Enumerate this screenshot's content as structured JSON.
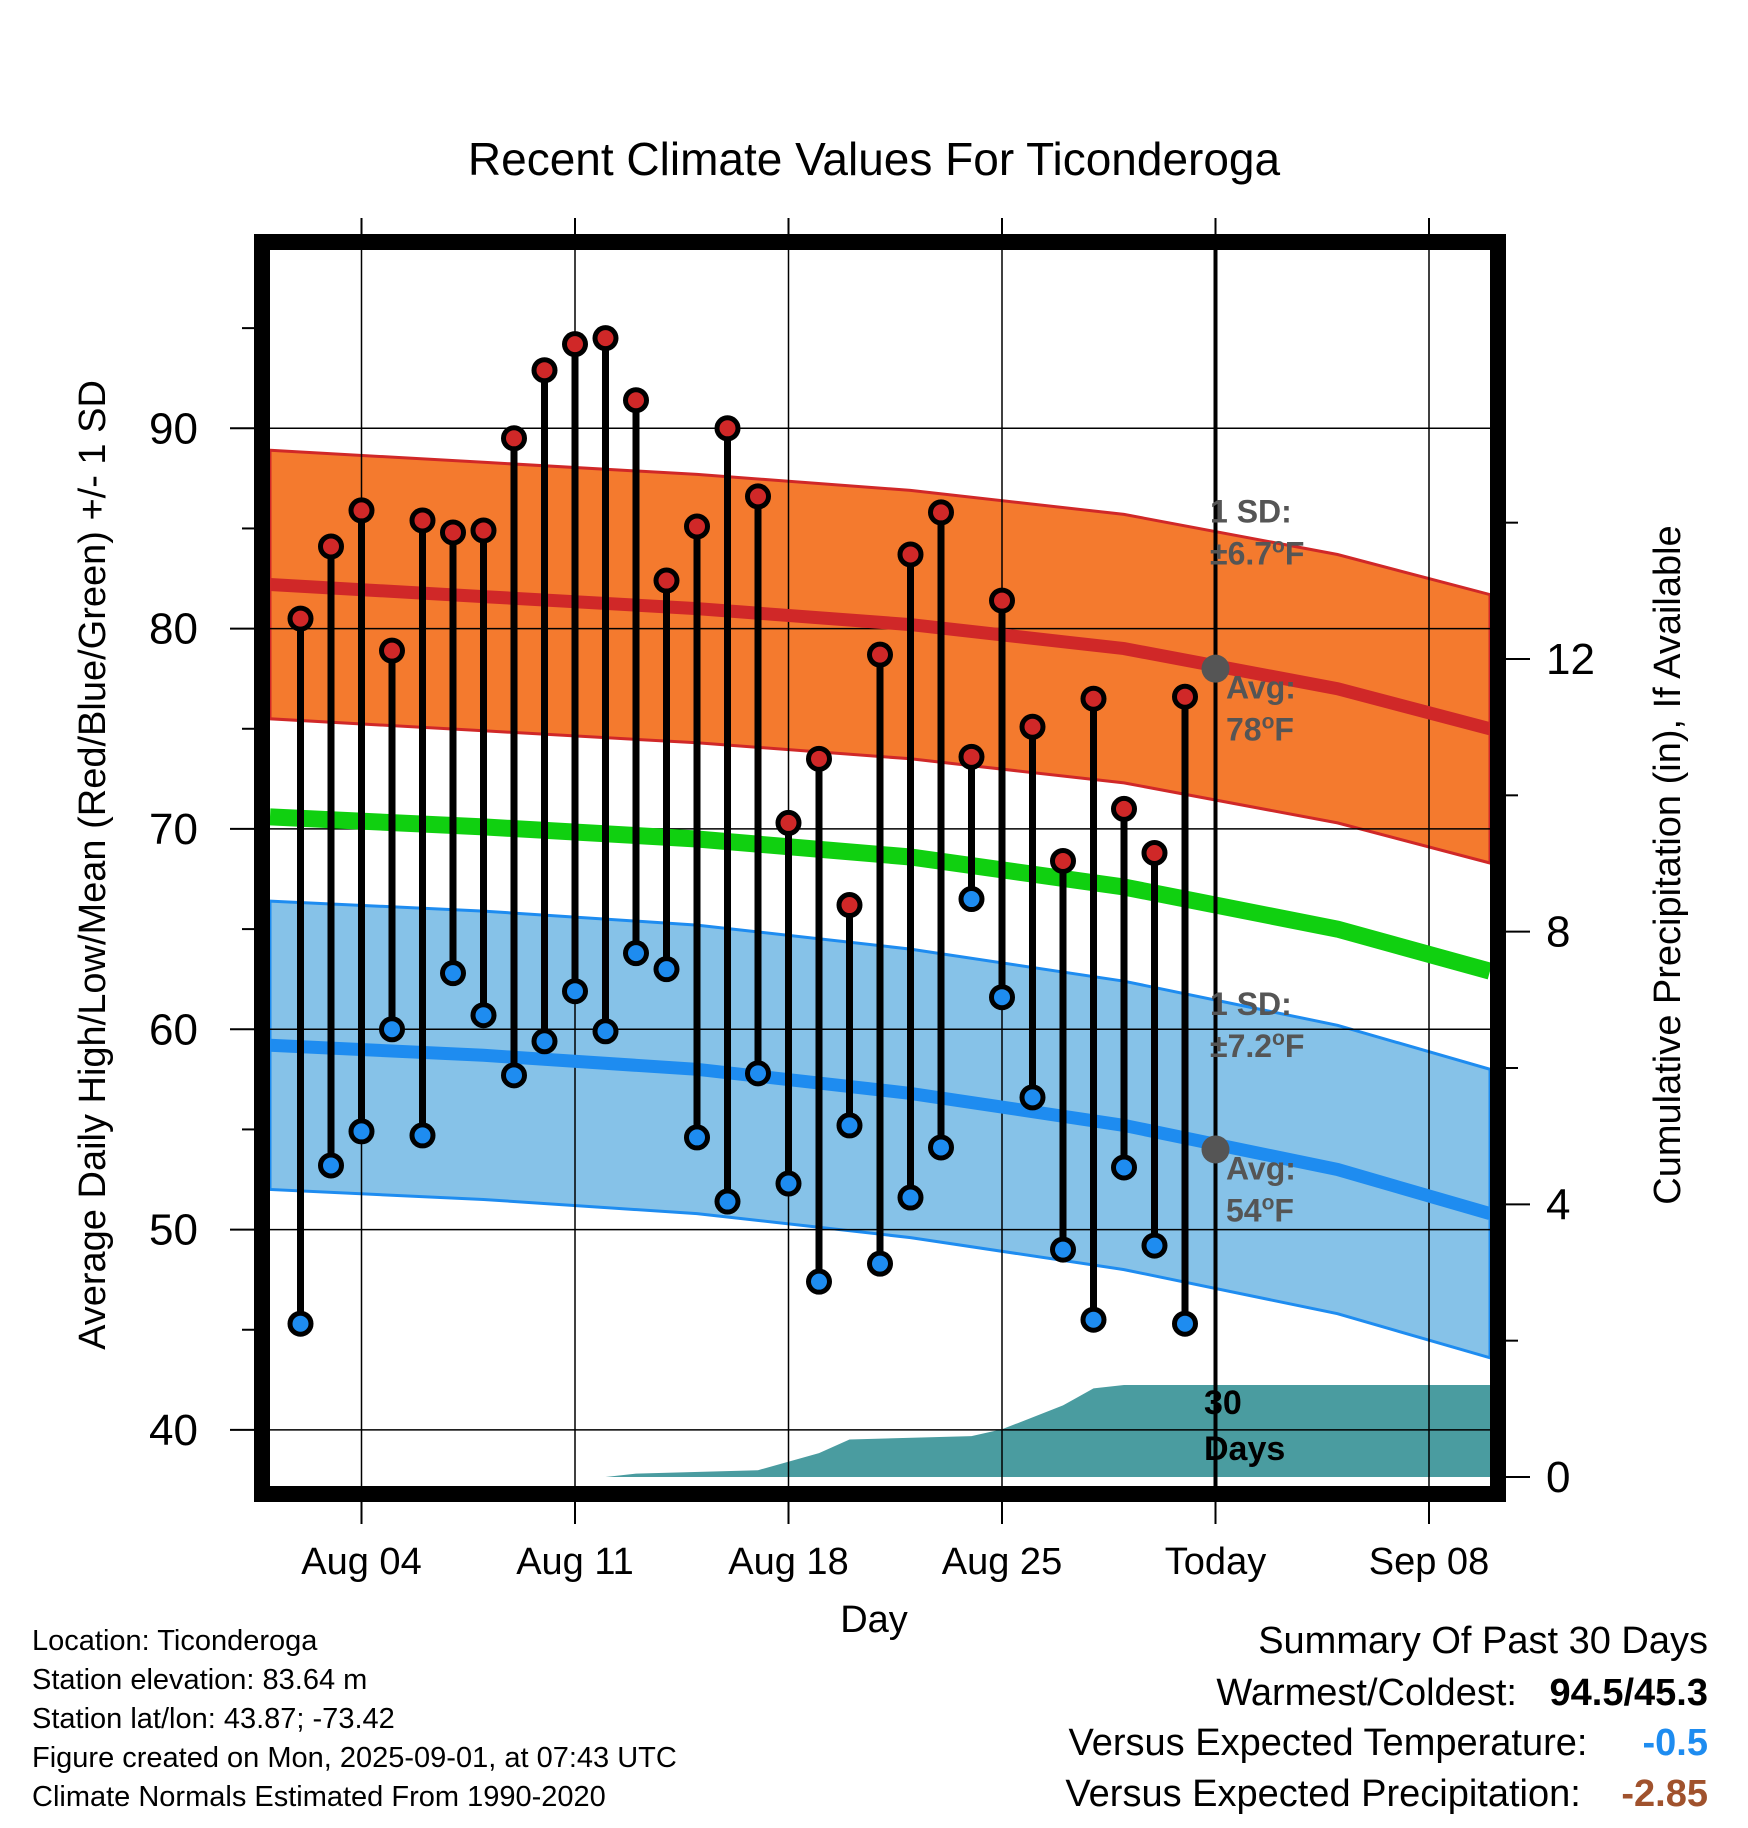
{
  "chart_data": {
    "type": "line",
    "title": "Recent Climate Values For Ticonderoga",
    "xlabel": "Day",
    "ylabel": "Average Daily High/Low/Mean (Red/Blue/Green) +/- 1 SD",
    "ylabel_right": "Cumulative Precipitation (in), If Available",
    "ylim": [
      37.2,
      98.9
    ],
    "ylim_right": [
      0,
      18
    ],
    "y_ticks": [
      "40",
      "50",
      "60",
      "70",
      "80",
      "90"
    ],
    "y_ticks_right": [
      "0",
      "4",
      "8",
      "12"
    ],
    "x_range": [
      "2025-08-01",
      "2025-09-10"
    ],
    "x_ticks": [
      {
        "date": "2025-08-04",
        "label": "Aug 04"
      },
      {
        "date": "2025-08-11",
        "label": "Aug 11"
      },
      {
        "date": "2025-08-18",
        "label": "Aug 18"
      },
      {
        "date": "2025-08-25",
        "label": "Aug 25"
      },
      {
        "date": "2025-09-01",
        "label": "Today"
      },
      {
        "date": "2025-09-08",
        "label": "Sep 08"
      }
    ],
    "grid": true,
    "days": [
      "2025-08-02",
      "2025-08-03",
      "2025-08-04",
      "2025-08-05",
      "2025-08-06",
      "2025-08-07",
      "2025-08-08",
      "2025-08-09",
      "2025-08-10",
      "2025-08-11",
      "2025-08-12",
      "2025-08-13",
      "2025-08-14",
      "2025-08-15",
      "2025-08-16",
      "2025-08-17",
      "2025-08-18",
      "2025-08-19",
      "2025-08-20",
      "2025-08-21",
      "2025-08-22",
      "2025-08-23",
      "2025-08-24",
      "2025-08-25",
      "2025-08-26",
      "2025-08-27",
      "2025-08-28",
      "2025-08-29",
      "2025-08-30",
      "2025-08-31"
    ],
    "daily_high": [
      80.5,
      84.1,
      85.9,
      78.9,
      85.4,
      84.8,
      84.9,
      89.5,
      92.9,
      94.2,
      94.5,
      91.4,
      82.4,
      85.1,
      90.0,
      86.6,
      70.3,
      73.5,
      66.2,
      78.7,
      83.7,
      85.8,
      73.6,
      81.4,
      75.1,
      68.4,
      76.5,
      71.0,
      68.8,
      76.6
    ],
    "daily_low": [
      45.3,
      53.2,
      54.9,
      60.0,
      54.7,
      62.8,
      60.7,
      57.7,
      59.4,
      61.9,
      59.9,
      63.8,
      63.0,
      54.6,
      51.4,
      57.8,
      52.3,
      47.4,
      55.2,
      48.3,
      51.6,
      54.1,
      66.5,
      61.6,
      56.6,
      49.0,
      45.5,
      53.1,
      49.2,
      45.3
    ],
    "normals_x": [
      "2025-08-01",
      "2025-08-08",
      "2025-08-15",
      "2025-08-22",
      "2025-08-29",
      "2025-09-05",
      "2025-09-10"
    ],
    "normal_high": [
      82.2,
      81.6,
      81.0,
      80.2,
      79.0,
      77.0,
      75.0
    ],
    "normal_high_sd": 6.7,
    "normal_low": [
      59.2,
      58.7,
      58.0,
      56.8,
      55.2,
      53.0,
      50.8
    ],
    "normal_low_sd": 7.2,
    "normal_mean": [
      70.6,
      70.1,
      69.5,
      68.6,
      67.1,
      65.0,
      62.9
    ],
    "precip_x": [
      "2025-08-01",
      "2025-08-12",
      "2025-08-13",
      "2025-08-17",
      "2025-08-19",
      "2025-08-20",
      "2025-08-24",
      "2025-08-25",
      "2025-08-27",
      "2025-08-28",
      "2025-08-29",
      "2025-09-10"
    ],
    "cumulative_precip": [
      0.0,
      0.0,
      0.05,
      0.1,
      0.35,
      0.55,
      0.6,
      0.7,
      1.05,
      1.3,
      1.35,
      1.35
    ],
    "annotations": {
      "high_sd_label_1": "1 SD:",
      "high_sd_label_2": "±6.7",
      "high_avg_label_1": "Avg:",
      "high_avg_label_2": "78",
      "low_sd_label_1": "1 SD:",
      "low_sd_label_2": "±7.2",
      "low_avg_label_1": "Avg:",
      "low_avg_label_2": "54",
      "degree_mark": "o",
      "unit": "F",
      "days_label_1": "30",
      "days_label_2": "Days"
    },
    "colors": {
      "high_band": "#F47A2E",
      "high_line": "#D02828",
      "low_band": "#86C2E8",
      "low_line": "#1E8CF0",
      "mean_line": "#10D010",
      "precip_fill": "#4A9CA0",
      "high_marker": "#D02828",
      "low_marker": "#1E8CF0",
      "annotation_text": "#555555",
      "temp_negative": "#1E8CF0",
      "precip_negative": "#A0522D"
    }
  },
  "footer": {
    "location": "Location: Ticonderoga",
    "elevation": "Station elevation: 83.64 m",
    "latlon": "Station lat/lon: 43.87; -73.42",
    "created": "Figure created on Mon, 2025-09-01, at 07:43 UTC",
    "normals": "Climate Normals Estimated From 1990-2020"
  },
  "summary": {
    "heading": "Summary Of Past 30 Days",
    "warmest_label": "Warmest/Coldest:",
    "warmest_value": "94.5/45.3",
    "temp_label": "Versus Expected Temperature:",
    "temp_value": "-0.5",
    "precip_label": "Versus Expected Precipitation:",
    "precip_value": "-2.85"
  }
}
